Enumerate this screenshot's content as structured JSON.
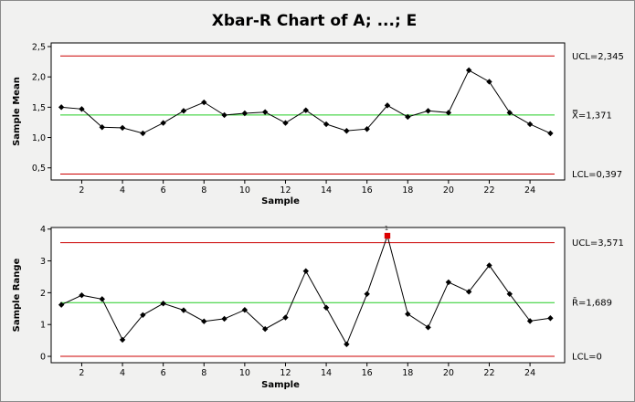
{
  "title": "Xbar-R Chart of A; ...; E",
  "colors": {
    "limit_line": "#cc0000",
    "center_line": "#22cc22",
    "series": "#000000",
    "flagged_point": "#dd0000",
    "background": "#f1f1f0",
    "plot_area": "#ffffff"
  },
  "chart_data": [
    {
      "type": "line",
      "name": "xbar",
      "ylabel": "Sample Mean",
      "xlabel": "Sample",
      "x": [
        1,
        2,
        3,
        4,
        5,
        6,
        7,
        8,
        9,
        10,
        11,
        12,
        13,
        14,
        15,
        16,
        17,
        18,
        19,
        20,
        21,
        22,
        23,
        24,
        25
      ],
      "values": [
        1.5,
        1.47,
        1.17,
        1.16,
        1.07,
        1.24,
        1.44,
        1.58,
        1.37,
        1.4,
        1.42,
        1.24,
        1.45,
        1.22,
        1.11,
        1.14,
        1.53,
        1.34,
        1.44,
        1.41,
        2.11,
        1.92,
        1.41,
        1.22,
        1.07
      ],
      "xticks": [
        2,
        4,
        6,
        8,
        10,
        12,
        14,
        16,
        18,
        20,
        22,
        24
      ],
      "xtick_labels": [
        "2",
        "4",
        "6",
        "8",
        "10",
        "12",
        "14",
        "16",
        "18",
        "20",
        "22",
        "24"
      ],
      "yticks": [
        0.5,
        1.0,
        1.5,
        2.0,
        2.5
      ],
      "ytick_labels": [
        "0,5",
        "1,0",
        "1,5",
        "2,0",
        "2,5"
      ],
      "ylim": [
        0.3,
        2.56
      ],
      "xlim": [
        0.5,
        25.7
      ],
      "ucl": 2.345,
      "center": 1.371,
      "lcl": 0.397,
      "ucl_label": "UCL=2,345",
      "center_label": "X̿=1,371",
      "lcl_label": "LCL=0,397",
      "flagged": []
    },
    {
      "type": "line",
      "name": "range",
      "ylabel": "Sample Range",
      "xlabel": "Sample",
      "x": [
        1,
        2,
        3,
        4,
        5,
        6,
        7,
        8,
        9,
        10,
        11,
        12,
        13,
        14,
        15,
        16,
        17,
        18,
        19,
        20,
        21,
        22,
        23,
        24,
        25
      ],
      "values": [
        1.62,
        1.92,
        1.8,
        0.52,
        1.3,
        1.66,
        1.45,
        1.1,
        1.18,
        1.46,
        0.86,
        1.22,
        2.68,
        1.53,
        0.38,
        1.96,
        3.79,
        1.33,
        0.91,
        2.33,
        2.03,
        2.86,
        1.96,
        1.11,
        1.2
      ],
      "xticks": [
        2,
        4,
        6,
        8,
        10,
        12,
        14,
        16,
        18,
        20,
        22,
        24
      ],
      "xtick_labels": [
        "2",
        "4",
        "6",
        "8",
        "10",
        "12",
        "14",
        "16",
        "18",
        "20",
        "22",
        "24"
      ],
      "yticks": [
        0,
        1,
        2,
        3,
        4
      ],
      "ytick_labels": [
        "0",
        "1",
        "2",
        "3",
        "4"
      ],
      "ylim": [
        -0.2,
        4.05
      ],
      "xlim": [
        0.5,
        25.7
      ],
      "ucl": 3.571,
      "center": 1.689,
      "lcl": 0,
      "ucl_label": "UCL=3,571",
      "center_label": "R̄=1,689",
      "lcl_label": "LCL=0",
      "flagged": [
        {
          "index": 16,
          "label": "1"
        }
      ]
    }
  ]
}
